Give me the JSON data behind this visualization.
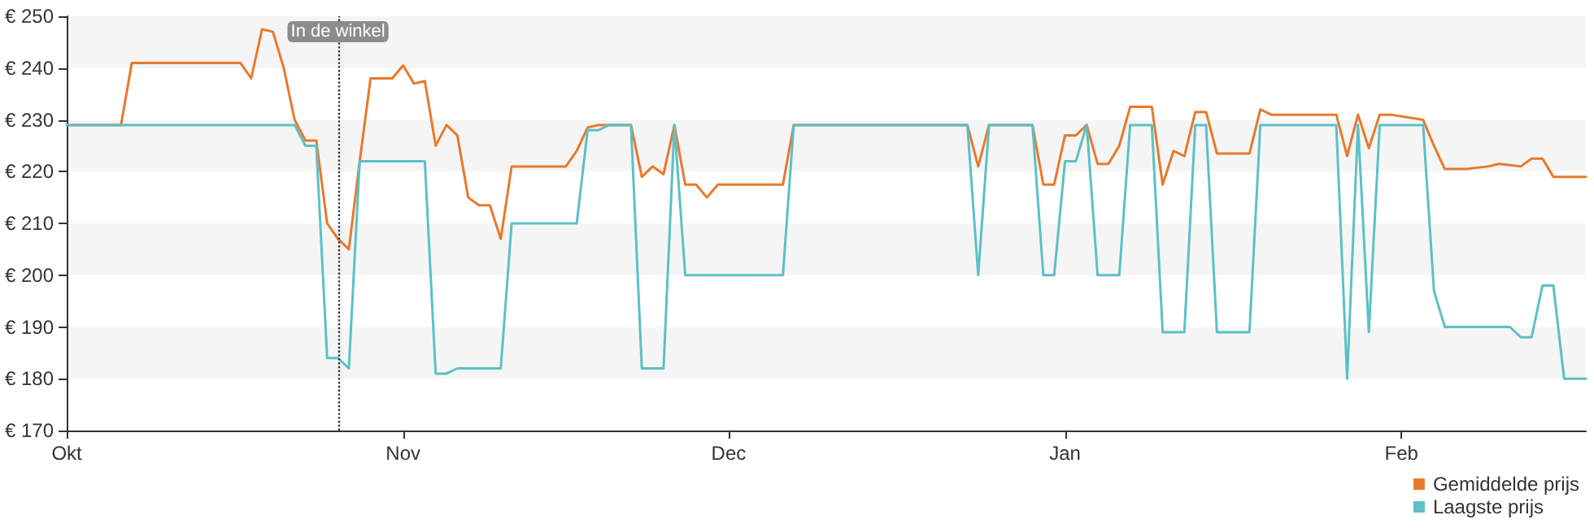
{
  "chart_data": {
    "type": "line",
    "categories": [
      "Okt",
      null,
      null,
      null,
      null,
      null,
      null,
      null,
      null,
      null,
      null,
      null,
      null,
      null,
      null,
      null,
      null,
      null,
      null,
      null,
      null,
      null,
      null,
      null,
      null,
      null,
      null,
      null,
      null,
      null,
      null,
      "Nov",
      null,
      null,
      null,
      null,
      null,
      null,
      null,
      null,
      null,
      null,
      null,
      null,
      null,
      null,
      null,
      null,
      null,
      null,
      null,
      null,
      null,
      null,
      null,
      null,
      null,
      null,
      null,
      null,
      null,
      "Dec",
      null,
      null,
      null,
      null,
      null,
      null,
      null,
      null,
      null,
      null,
      null,
      null,
      null,
      null,
      null,
      null,
      null,
      null,
      null,
      null,
      null,
      null,
      null,
      null,
      null,
      null,
      null,
      null,
      null,
      null,
      "Jan",
      null,
      null,
      null,
      null,
      null,
      null,
      null,
      null,
      null,
      null,
      null,
      null,
      null,
      null,
      null,
      null,
      null,
      null,
      null,
      null,
      null,
      null,
      null,
      null,
      null,
      null,
      null,
      null,
      null,
      null,
      "Feb",
      null,
      null,
      null,
      null,
      null,
      null,
      null,
      null,
      null,
      null,
      null,
      null,
      null,
      null,
      null,
      null,
      null
    ],
    "series": [
      {
        "name": "Gemiddelde prijs",
        "color": "#e8792b",
        "values": [
          229,
          null,
          null,
          null,
          null,
          229,
          241,
          null,
          null,
          null,
          null,
          null,
          null,
          null,
          null,
          null,
          241,
          238,
          247.5,
          247,
          240,
          230,
          226,
          226,
          210,
          207,
          205,
          222,
          238,
          null,
          238,
          240.5,
          237,
          237.5,
          225,
          229,
          227,
          215,
          213.5,
          213.5,
          207,
          221,
          null,
          null,
          null,
          null,
          221,
          224,
          228.5,
          229,
          null,
          null,
          229,
          219,
          221,
          219.5,
          229,
          217.5,
          217.5,
          215,
          217.5,
          null,
          null,
          null,
          null,
          null,
          217.5,
          229,
          null,
          null,
          null,
          null,
          null,
          null,
          null,
          null,
          null,
          null,
          null,
          null,
          null,
          null,
          null,
          229,
          221,
          229,
          null,
          null,
          null,
          229,
          217.5,
          217.5,
          227,
          227,
          229,
          221.5,
          221.5,
          225,
          232.5,
          null,
          232.5,
          217.5,
          224,
          223,
          231.5,
          231.5,
          223.5,
          null,
          null,
          223.5,
          232,
          231,
          null,
          null,
          null,
          null,
          null,
          231,
          223,
          231,
          224.5,
          231,
          231,
          null,
          null,
          230,
          225,
          220.5,
          null,
          220.5,
          null,
          221,
          221.5,
          null,
          221,
          222.5,
          222.5,
          219,
          null,
          null,
          219
        ]
      },
      {
        "name": "Laagste prijs",
        "color": "#5bc0c8",
        "values": [
          229,
          null,
          null,
          null,
          null,
          null,
          null,
          null,
          null,
          null,
          null,
          null,
          null,
          null,
          null,
          null,
          null,
          null,
          null,
          null,
          null,
          229,
          225,
          225,
          184,
          184,
          182,
          222,
          null,
          null,
          null,
          null,
          null,
          222,
          181,
          181,
          182,
          null,
          null,
          null,
          182,
          210,
          null,
          null,
          null,
          null,
          null,
          210,
          228,
          228,
          229,
          null,
          229,
          182,
          null,
          182,
          229,
          200,
          null,
          null,
          null,
          null,
          null,
          null,
          null,
          null,
          200,
          229,
          null,
          null,
          null,
          null,
          null,
          null,
          null,
          null,
          null,
          null,
          null,
          null,
          null,
          null,
          null,
          229,
          200,
          229,
          null,
          null,
          null,
          229,
          200,
          200,
          222,
          222,
          229,
          200,
          null,
          200,
          229,
          null,
          229,
          189,
          null,
          189,
          229,
          229,
          189,
          null,
          null,
          189,
          229,
          null,
          null,
          null,
          null,
          null,
          null,
          229,
          180,
          229,
          189,
          229,
          null,
          null,
          null,
          229,
          197,
          190,
          null,
          null,
          null,
          null,
          null,
          190,
          188,
          188,
          198,
          198,
          180,
          null,
          180
        ]
      }
    ],
    "ylim": [
      170,
      250
    ],
    "yticks": [
      {
        "value": 170,
        "label": "€ 170"
      },
      {
        "value": 180,
        "label": "€ 180"
      },
      {
        "value": 190,
        "label": "€ 190"
      },
      {
        "value": 200,
        "label": "€ 200"
      },
      {
        "value": 210,
        "label": "€ 210"
      },
      {
        "value": 220,
        "label": "€ 220"
      },
      {
        "value": 230,
        "label": "€ 230"
      },
      {
        "value": 240,
        "label": "€ 240"
      },
      {
        "value": 250,
        "label": "€ 250"
      }
    ],
    "annotations": [
      "In de winkel"
    ],
    "legend": "bottom right",
    "marker": "none",
    "line_style": "solid"
  }
}
